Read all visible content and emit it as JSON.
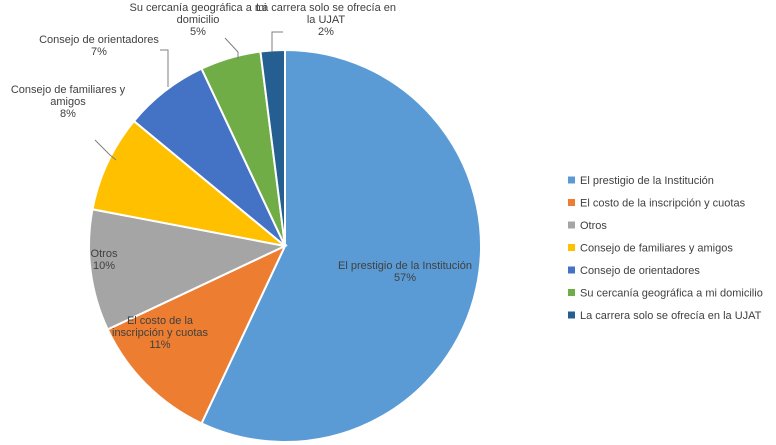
{
  "chart_data": {
    "type": "pie",
    "title": "",
    "legend_position": "right",
    "slices": [
      {
        "label": "El prestigio de la Institución",
        "value": 57,
        "value_label": "57%",
        "color": "#5B9BD5",
        "label_lines": [
          "El prestigio de la Institución"
        ]
      },
      {
        "label": "El costo de la inscripción y cuotas",
        "value": 11,
        "value_label": "11%",
        "color": "#ED7D31",
        "label_lines": [
          "El costo de la",
          "inscripción y cuotas"
        ]
      },
      {
        "label": "Otros",
        "value": 10,
        "value_label": "10%",
        "color": "#A5A5A5",
        "label_lines": [
          "Otros"
        ]
      },
      {
        "label": "Consejo de familiares y amigos",
        "value": 8,
        "value_label": "8%",
        "color": "#FFC000",
        "label_lines": [
          "Consejo de familiares y",
          "amigos"
        ]
      },
      {
        "label": "Consejo de orientadores",
        "value": 7,
        "value_label": "7%",
        "color": "#4472C4",
        "label_lines": [
          "Consejo de orientadores"
        ]
      },
      {
        "label": "Su cercanía geográfica a mi domicilio",
        "value": 5,
        "value_label": "5%",
        "color": "#70AD47",
        "label_lines": [
          "Su cercanía geográfica a mi",
          "domicilio"
        ]
      },
      {
        "label": "La carrera solo se ofrecía en la UJAT",
        "value": 2,
        "value_label": "2%",
        "color": "#255E91",
        "label_lines": [
          "La carrera solo se ofrecía en",
          "la UJAT"
        ]
      }
    ]
  }
}
